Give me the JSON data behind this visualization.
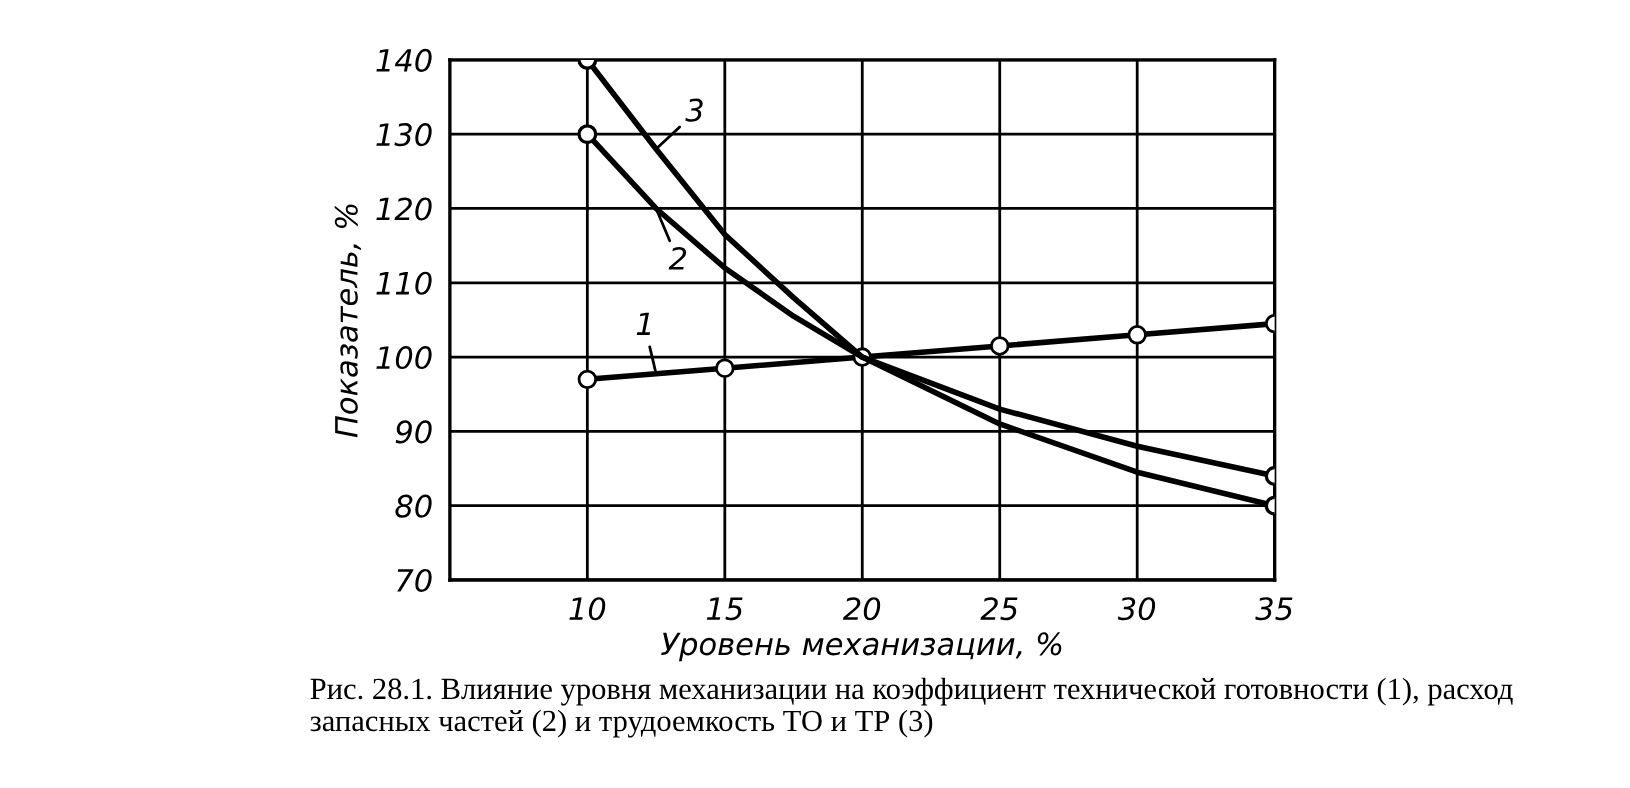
{
  "chart_data": {
    "type": "line",
    "xlabel": "Уровень механизации, %",
    "ylabel": "Показатель, %",
    "xlim": [
      5,
      35
    ],
    "ylim": [
      70,
      140
    ],
    "xticks": [
      10,
      15,
      20,
      25,
      30,
      35
    ],
    "yticks": [
      70,
      80,
      90,
      100,
      110,
      120,
      130,
      140
    ],
    "grid": true,
    "line_style": "solid",
    "series": [
      {
        "name": "1",
        "color": "#000000",
        "marker": "circle",
        "x": [
          10,
          12.5,
          15,
          20,
          25,
          30,
          35
        ],
        "values": [
          97,
          97.75,
          98.5,
          100,
          101.5,
          103,
          104.5
        ]
      },
      {
        "name": "2",
        "color": "#000000",
        "marker": "none",
        "x": [
          10,
          12.5,
          15,
          17.5,
          20,
          25,
          30,
          35
        ],
        "values": [
          130,
          120,
          112,
          105.5,
          100,
          93,
          88,
          84
        ]
      },
      {
        "name": "3",
        "color": "#000000",
        "marker": "none",
        "x": [
          10,
          12.5,
          15,
          17.5,
          20,
          25,
          30,
          35
        ],
        "values": [
          140,
          128,
          116.5,
          108,
          100,
          91,
          84.5,
          80
        ]
      },
      {
        "type": "scatter",
        "color": "#000000",
        "marker": "circle",
        "x": [
          10,
          10,
          35,
          35
        ],
        "values": [
          130,
          140,
          84,
          80
        ]
      }
    ],
    "annotations": [
      "Рис. 28.1. Влияние уровня механизации на коэффициент технической готовности (1), расход запасных частей (2) и трудоемкость ТО и ТР (3)"
    ]
  }
}
